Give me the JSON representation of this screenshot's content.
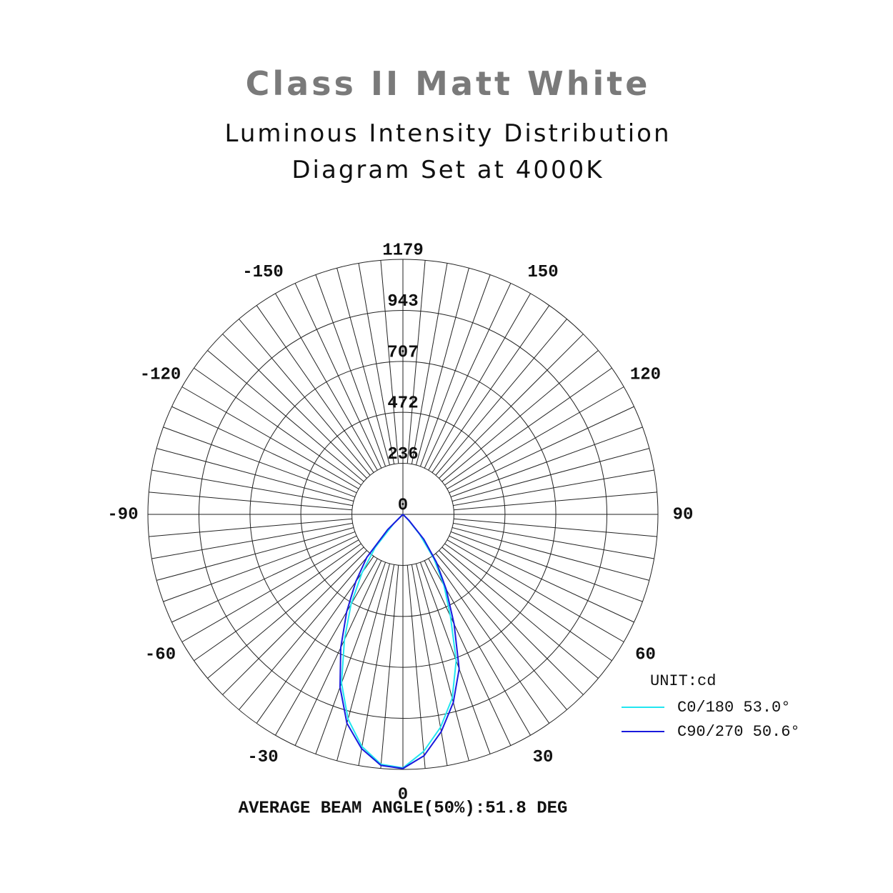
{
  "chart_data": {
    "type": "polar",
    "title": "Class II Matt White",
    "subtitle": [
      "Luminous Intensity Distribution",
      "Diagram Set at 4000K"
    ],
    "x": [
      -50,
      -45,
      -40,
      -35,
      -30,
      -25,
      -20,
      -15,
      -10,
      -5,
      0,
      5,
      10,
      15,
      20,
      25,
      30,
      35,
      40,
      45,
      50
    ],
    "series": [
      {
        "name": "C0/180 53.0°",
        "color": "#22e6f0",
        "values": [
          0,
          60,
          200,
          330,
          480,
          640,
          830,
          980,
          1090,
          1160,
          1172,
          1100,
          1000,
          880,
          720,
          520,
          380,
          250,
          120,
          30,
          0
        ]
      },
      {
        "name": "C90/270 50.6°",
        "color": "#1a1adc",
        "values": [
          0,
          100,
          260,
          380,
          520,
          680,
          850,
          1000,
          1100,
          1165,
          1175,
          1120,
          1020,
          900,
          760,
          560,
          400,
          270,
          150,
          40,
          0
        ]
      }
    ],
    "rlim": [
      0,
      1179
    ],
    "rticks": [
      0,
      236,
      472,
      707,
      943,
      1179
    ],
    "thetaticks": [
      -150,
      -120,
      -90,
      -60,
      -30,
      0,
      30,
      60,
      90,
      120,
      150
    ],
    "unit_label": "UNIT:cd",
    "footer": "AVERAGE BEAM ANGLE(50%):51.8 DEG",
    "grid": true
  }
}
